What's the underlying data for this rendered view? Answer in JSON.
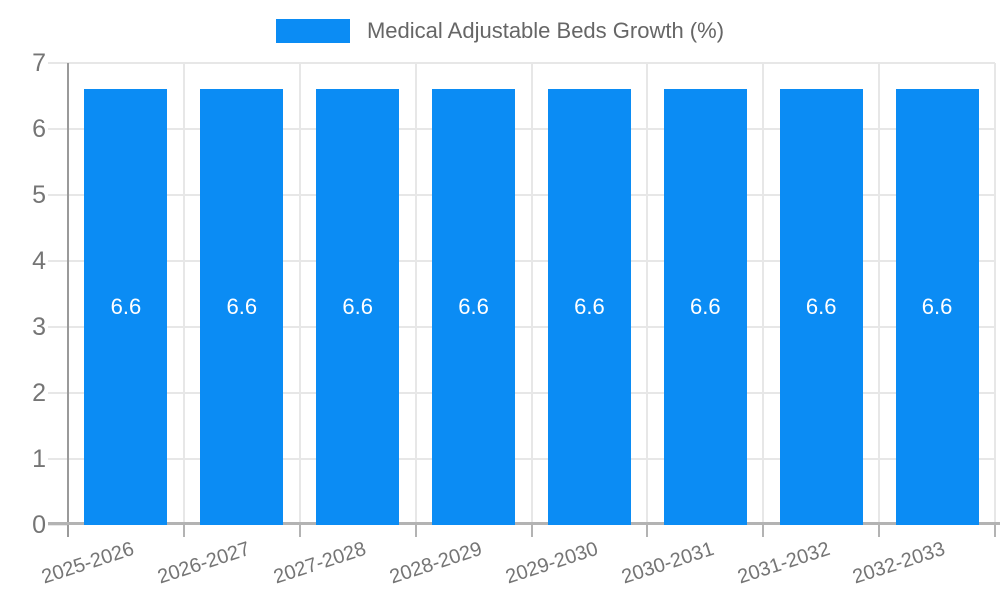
{
  "legend": {
    "label": "Medical Adjustable Beds Growth (%)"
  },
  "colors": {
    "background": "#ffffff",
    "bar": "#0b8cf4",
    "gridline": "#e7e7e7",
    "axis_line": "#9a9a9a",
    "baseline": "#b3b3b3",
    "tick_text": "#757575",
    "legend_text": "#666666",
    "value_label_text": "#ffffff"
  },
  "y_axis": {
    "tick_labels": [
      "0",
      "1",
      "2",
      "3",
      "4",
      "5",
      "6",
      "7"
    ],
    "min": 0,
    "max": 7
  },
  "chart_data": {
    "type": "bar",
    "title": "Medical Adjustable Beds Growth (%)",
    "categories": [
      "2025-2026",
      "2026-2027",
      "2027-2028",
      "2028-2029",
      "2029-2030",
      "2030-2031",
      "2031-2032",
      "2032-2033"
    ],
    "values": [
      6.6,
      6.6,
      6.6,
      6.6,
      6.6,
      6.6,
      6.6,
      6.6
    ],
    "value_labels": [
      "6.6",
      "6.6",
      "6.6",
      "6.6",
      "6.6",
      "6.6",
      "6.6",
      "6.6"
    ],
    "xlabel": "",
    "ylabel": "",
    "ylim": [
      0,
      7
    ],
    "y_tick_step": 1,
    "grid": true,
    "legend_position": "top",
    "bar_value_labels_inside": true,
    "x_label_rotation_deg": -18
  }
}
